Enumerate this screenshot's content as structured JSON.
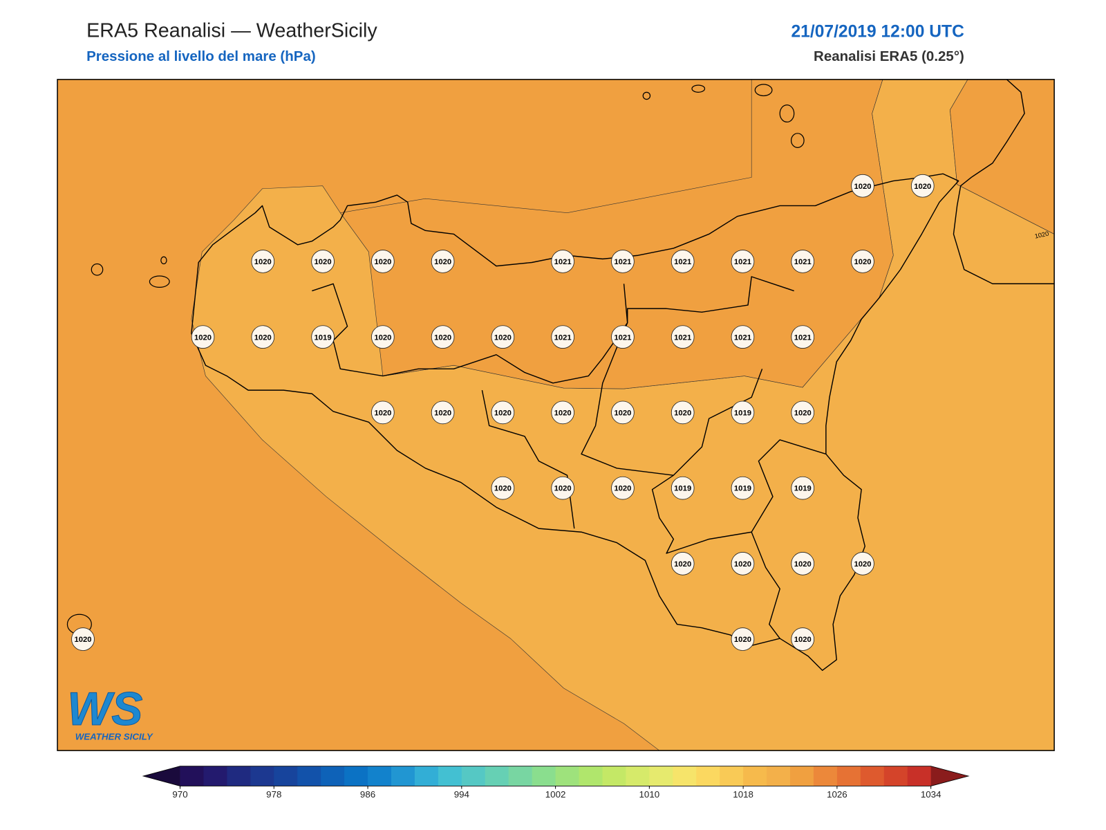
{
  "header": {
    "title": "ERA5 Reanalisi — WeatherSicily",
    "subtitle": "Pressione al livello del mare (hPa)",
    "date": "21/07/2019 12:00 UTC",
    "source": "Reanalisi ERA5 (0.25°)"
  },
  "map": {
    "stations": [
      [
        null,
        null,
        null,
        null,
        null,
        null,
        null,
        null,
        null,
        null,
        null,
        null,
        null,
        1020,
        1020
      ],
      [
        null,
        null,
        null,
        1020,
        1020,
        1020,
        1020,
        null,
        1021,
        1021,
        1021,
        1021,
        1021,
        1020,
        null
      ],
      [
        null,
        null,
        1020,
        1020,
        1019,
        1020,
        1020,
        1020,
        1021,
        1021,
        1021,
        1021,
        1021,
        null,
        null
      ],
      [
        null,
        null,
        null,
        null,
        null,
        1020,
        1020,
        1020,
        1020,
        1020,
        1020,
        1019,
        1020,
        null,
        null
      ],
      [
        null,
        null,
        null,
        null,
        null,
        null,
        null,
        1020,
        1020,
        1020,
        1019,
        1019,
        1019,
        null,
        null
      ],
      [
        null,
        null,
        null,
        null,
        null,
        null,
        null,
        null,
        null,
        null,
        1020,
        1020,
        1020,
        1020,
        null
      ],
      [
        1020,
        null,
        null,
        null,
        null,
        null,
        null,
        null,
        null,
        null,
        null,
        1020,
        1020,
        null,
        null
      ]
    ],
    "contour_label": 1020
  },
  "colorbar": {
    "range": [
      970,
      1034
    ],
    "ticks": [
      970,
      978,
      986,
      994,
      1002,
      1010,
      1018,
      1026,
      1034
    ],
    "colors": [
      "#22105a",
      "#231a6e",
      "#1f2a80",
      "#1c3890",
      "#17449c",
      "#1252aa",
      "#0e62b8",
      "#0b72c4",
      "#1282cc",
      "#2196d2",
      "#32aed6",
      "#43c0d2",
      "#55c8c4",
      "#66d0b4",
      "#78d6a2",
      "#8ade8e",
      "#9ee27c",
      "#b0e66c",
      "#c4e866",
      "#d6ea6a",
      "#e6ea6e",
      "#f6e46a",
      "#fbd860",
      "#f9ca56",
      "#f6ba4c",
      "#f3b04a",
      "#f0a040",
      "#ec883a",
      "#e67234",
      "#de5a2e",
      "#d4442a",
      "#c83028"
    ],
    "under_color": "#1a0a3c",
    "over_color": "#8a1c1c"
  },
  "logo": {
    "mark": "WS",
    "name": "WEATHER SICILY"
  }
}
